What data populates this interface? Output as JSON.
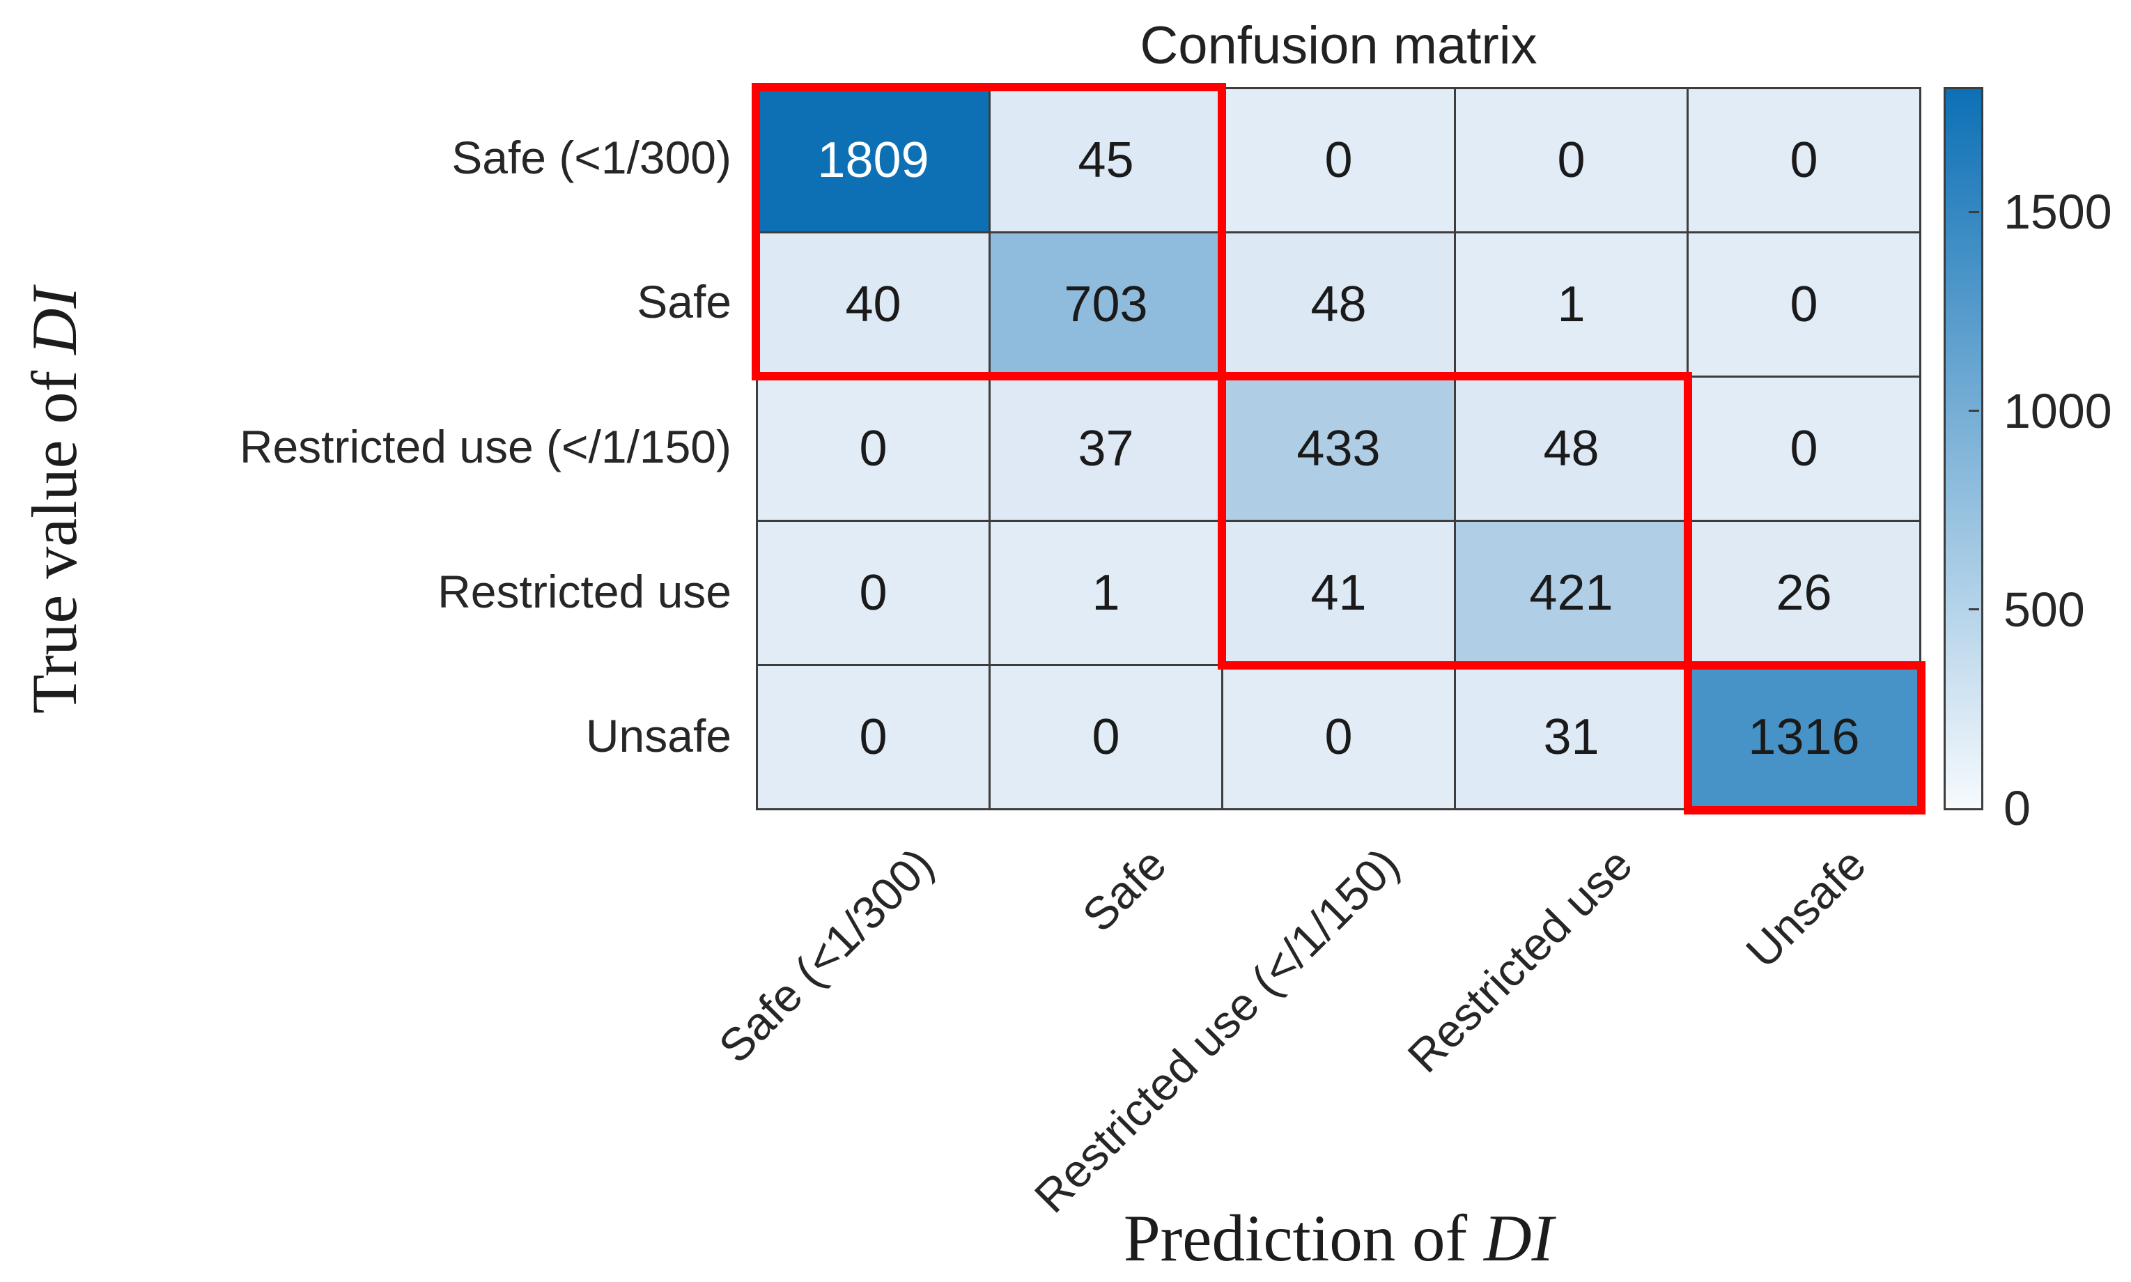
{
  "title": "Confusion matrix",
  "axes": {
    "y_title_prefix": "True value of ",
    "y_title_emph": "DI",
    "x_title_prefix": "Prediction of ",
    "x_title_emph": "DI"
  },
  "chart_data": {
    "type": "heatmap",
    "title": "Confusion matrix",
    "xlabel": "Prediction of DI",
    "ylabel": "True value of DI",
    "row_labels": [
      "Safe (<1/300)",
      "Safe",
      "Restricted use (</1/150)",
      "Restricted use",
      "Unsafe"
    ],
    "col_labels": [
      "Safe (<1/300)",
      "Safe",
      "Restricted use (</1/150)",
      "Restricted use",
      "Unsafe"
    ],
    "values": [
      [
        1809,
        45,
        0,
        0,
        0
      ],
      [
        40,
        703,
        48,
        1,
        0
      ],
      [
        0,
        37,
        433,
        48,
        0
      ],
      [
        0,
        1,
        41,
        421,
        26
      ],
      [
        0,
        0,
        0,
        31,
        1316
      ]
    ],
    "color_scale": {
      "min": 0,
      "max": 1809,
      "low": "#e2ecf6",
      "high": "#0d70b5"
    },
    "cell_text_dark": "#1a1a1a",
    "cell_text_light": "#ffffff",
    "colorbar_ticks": [
      1500,
      1000,
      500,
      0
    ],
    "highlight_boxes": [
      {
        "row_start": 1,
        "col_start": 1,
        "row_end": 2,
        "col_end": 2
      },
      {
        "row_start": 3,
        "col_start": 3,
        "row_end": 4,
        "col_end": 4
      },
      {
        "row_start": 5,
        "col_start": 5,
        "row_end": 5,
        "col_end": 5
      }
    ],
    "highlight_color": "#fe0000",
    "grid_line_color": "#3d3d3d",
    "legend_position": "right-colorbar",
    "grid": "on"
  }
}
